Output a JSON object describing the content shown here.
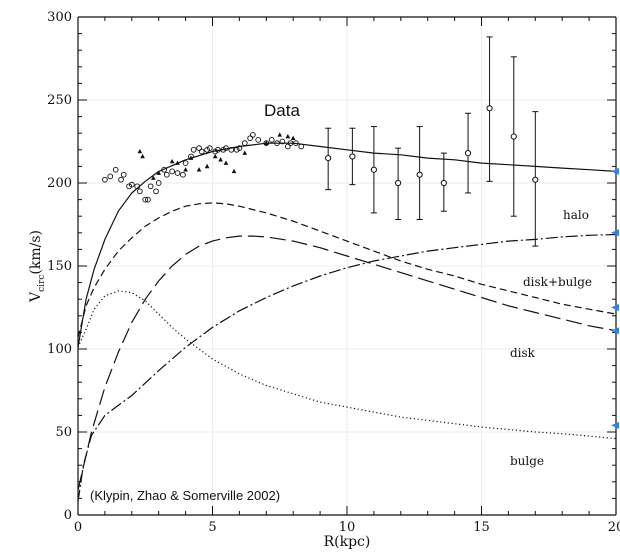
{
  "chart_data": {
    "type": "line",
    "xlabel": "R(kpc)",
    "ylabel_main": "V",
    "ylabel_sub": "circ",
    "ylabel_rest": "(km/s)",
    "xlim": [
      0,
      20
    ],
    "ylim": [
      0,
      300
    ],
    "xticks": [
      0,
      5,
      10,
      15,
      20
    ],
    "yticks": [
      0,
      50,
      100,
      150,
      200,
      250,
      300
    ],
    "annotations": {
      "data": "Data",
      "halo": "halo",
      "disk_bulge": "disk+bulge",
      "disk": "disk",
      "bulge": "bulge",
      "citation": "(Klypin, Zhao & Somerville 2002)"
    },
    "series": [
      {
        "key": "total",
        "style": "solid",
        "x": [
          0,
          0.3,
          0.6,
          1.0,
          1.5,
          2.0,
          2.5,
          3.0,
          4.0,
          5.0,
          6.0,
          7.0,
          8.0,
          9.0,
          10.0,
          11.0,
          12.0,
          13.0,
          14.0,
          15.0,
          16.0,
          17.0,
          18.0,
          19.0,
          20.0
        ],
        "y": [
          101,
          130,
          148,
          166,
          183,
          194,
          201,
          207,
          214,
          219,
          222,
          224,
          224,
          222,
          220,
          218,
          217,
          215,
          214,
          212,
          211,
          210,
          209,
          208,
          207
        ]
      },
      {
        "key": "disk_bulge",
        "style": "short-dash",
        "x": [
          0,
          0.3,
          0.6,
          1.0,
          1.5,
          2.0,
          2.5,
          3.0,
          3.5,
          4.0,
          4.5,
          5.0,
          5.5,
          6.0,
          7.0,
          8.0,
          9.0,
          10.0,
          11.0,
          12.0,
          13.0,
          14.0,
          15.0,
          16.0,
          17.0,
          18.0,
          19.0,
          20.0
        ],
        "y": [
          107,
          126,
          137,
          148,
          159,
          167,
          174,
          179,
          183,
          186,
          187.5,
          188,
          187.5,
          186,
          182,
          177,
          171,
          165,
          159,
          153,
          148,
          144,
          139,
          135,
          131,
          127,
          124,
          121
        ]
      },
      {
        "key": "disk",
        "style": "long-dash",
        "x": [
          0,
          0.5,
          1.0,
          1.5,
          2.0,
          2.5,
          3.0,
          3.5,
          4.0,
          4.5,
          5.0,
          5.5,
          6.0,
          6.5,
          7.0,
          8.0,
          9.0,
          10.0,
          11.0,
          12.0,
          13.0,
          14.0,
          15.0,
          16.0,
          17.0,
          18.0,
          19.0,
          20.0
        ],
        "y": [
          15,
          50,
          77,
          98,
          116,
          130,
          141,
          150,
          157,
          162,
          165,
          167,
          168,
          168,
          167.5,
          165,
          161,
          156,
          151,
          146,
          141,
          136,
          131,
          126,
          122,
          118,
          114,
          111
        ]
      },
      {
        "key": "halo",
        "style": "dash-dot",
        "x": [
          0,
          0.2,
          0.5,
          1.0,
          1.5,
          2.0,
          3.0,
          4.0,
          5.0,
          6.0,
          7.0,
          8.0,
          9.0,
          10.0,
          11.0,
          12.0,
          13.0,
          14.0,
          15.0,
          16.0,
          17.0,
          18.0,
          19.0,
          20.0
        ],
        "y": [
          8,
          30,
          48,
          60,
          66,
          72,
          87,
          101,
          113,
          123,
          131,
          138,
          144,
          149,
          153,
          156,
          159,
          161,
          163,
          165,
          166,
          167.5,
          168.5,
          169
        ]
      },
      {
        "key": "bulge",
        "style": "dotted",
        "x": [
          0,
          0.3,
          0.6,
          1.0,
          1.5,
          2.0,
          2.5,
          3.0,
          3.5,
          4.0,
          5.0,
          6.0,
          7.0,
          8.0,
          9.0,
          10.0,
          11.0,
          12.0,
          13.0,
          14.0,
          15.0,
          16.0,
          17.0,
          18.0,
          19.0,
          20.0
        ],
        "y": [
          101,
          112,
          124,
          132,
          135,
          134,
          129,
          121,
          113,
          106,
          94,
          85,
          78,
          73,
          68,
          65,
          62,
          59,
          57,
          55,
          53,
          51.5,
          50,
          49,
          47.5,
          46
        ]
      }
    ],
    "data_points": {
      "circles": {
        "x": [
          1.0,
          1.2,
          1.4,
          1.6,
          1.7,
          1.9,
          2.0,
          2.2,
          2.3,
          2.5,
          2.6,
          2.7,
          2.9,
          3.0,
          3.2,
          3.3,
          3.5,
          3.7,
          3.9,
          4.0,
          4.2,
          4.3,
          4.5,
          4.6,
          4.8,
          4.9,
          5.1,
          5.2,
          5.4,
          5.5,
          5.7,
          5.9,
          6.0,
          6.2,
          6.4,
          6.5,
          6.7,
          7.0,
          7.2,
          7.4,
          7.6,
          7.8,
          7.9,
          8.1,
          8.3
        ],
        "y": [
          202,
          204,
          208,
          202,
          205,
          198,
          199,
          198,
          195,
          190,
          190,
          198,
          195,
          200,
          208,
          205,
          207,
          206,
          205,
          212,
          216,
          220,
          221,
          219,
          220,
          221,
          219,
          220,
          220,
          221,
          220,
          220,
          221,
          224,
          227,
          229,
          226,
          224,
          226,
          224,
          225,
          222,
          224,
          224,
          222
        ]
      },
      "triangles": {
        "x": [
          2.3,
          2.4,
          2.8,
          3.0,
          3.5,
          3.7,
          4.0,
          4.2,
          4.5,
          4.8,
          5.1,
          5.3,
          5.5,
          5.8,
          6.2,
          7.0,
          7.5,
          7.8,
          8.0
        ],
        "y": [
          219,
          216,
          203,
          206,
          213,
          212,
          208,
          215,
          208,
          210,
          216,
          214,
          212,
          207,
          218,
          224,
          229,
          228,
          227
        ]
      },
      "binned": [
        {
          "x": 9.3,
          "y": 215,
          "lo": 196,
          "hi": 233
        },
        {
          "x": 10.2,
          "y": 216,
          "lo": 199,
          "hi": 233
        },
        {
          "x": 11.0,
          "y": 208,
          "lo": 182,
          "hi": 234
        },
        {
          "x": 11.9,
          "y": 200,
          "lo": 178,
          "hi": 221
        },
        {
          "x": 12.7,
          "y": 205,
          "lo": 178,
          "hi": 234
        },
        {
          "x": 13.6,
          "y": 200,
          "lo": 183,
          "hi": 218
        },
        {
          "x": 14.5,
          "y": 218,
          "lo": 194,
          "hi": 242
        },
        {
          "x": 15.3,
          "y": 245,
          "lo": 201,
          "hi": 288
        },
        {
          "x": 16.2,
          "y": 228,
          "lo": 180,
          "hi": 276
        },
        {
          "x": 17.0,
          "y": 202,
          "lo": 162,
          "hi": 243
        }
      ]
    },
    "colors": {
      "ink": "#111111",
      "edge_marker": "#2f86e6"
    },
    "edge_markers_y": [
      207,
      170,
      125,
      111,
      54
    ]
  }
}
